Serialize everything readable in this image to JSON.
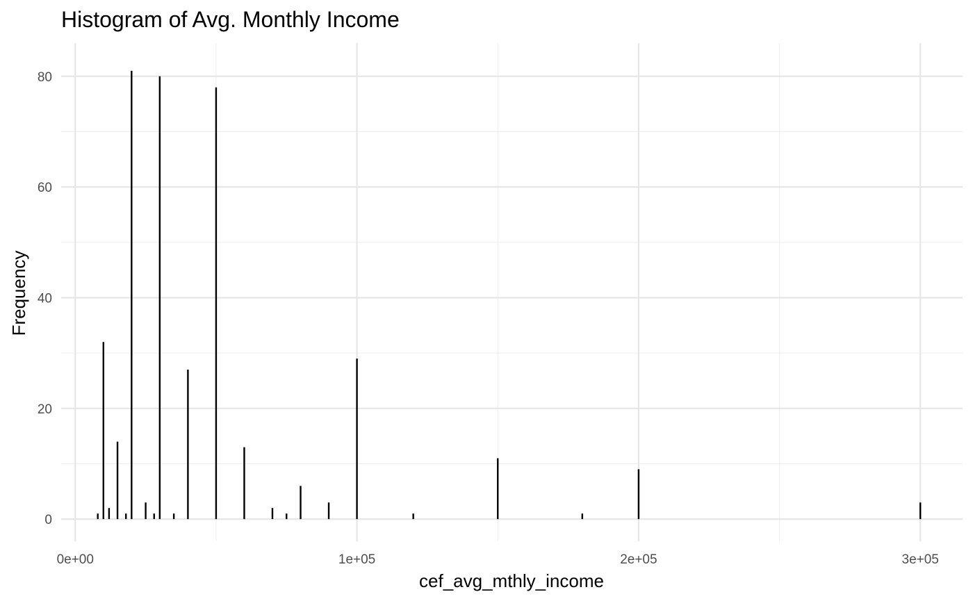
{
  "chart_data": {
    "type": "bar",
    "title": "Histogram of Avg. Monthly Income",
    "xlabel": "cef_avg_mthly_income",
    "ylabel": "Frequency",
    "xlim": [
      -5000,
      315000
    ],
    "ylim": [
      -4,
      86
    ],
    "x_ticks": [
      {
        "value": 0,
        "label": "0e+00"
      },
      {
        "value": 100000,
        "label": "1e+05"
      },
      {
        "value": 200000,
        "label": "2e+05"
      },
      {
        "value": 300000,
        "label": "3e+05"
      }
    ],
    "y_ticks": [
      {
        "value": 0,
        "label": "0"
      },
      {
        "value": 20,
        "label": "20"
      },
      {
        "value": 40,
        "label": "40"
      },
      {
        "value": 60,
        "label": "60"
      },
      {
        "value": 80,
        "label": "80"
      }
    ],
    "grid": true,
    "legend": "none",
    "bars": [
      {
        "x": 8000,
        "count": 1
      },
      {
        "x": 10000,
        "count": 32
      },
      {
        "x": 12000,
        "count": 2
      },
      {
        "x": 15000,
        "count": 14
      },
      {
        "x": 18000,
        "count": 1
      },
      {
        "x": 20000,
        "count": 81
      },
      {
        "x": 25000,
        "count": 3
      },
      {
        "x": 28000,
        "count": 1
      },
      {
        "x": 30000,
        "count": 80
      },
      {
        "x": 35000,
        "count": 1
      },
      {
        "x": 40000,
        "count": 27
      },
      {
        "x": 50000,
        "count": 78
      },
      {
        "x": 60000,
        "count": 13
      },
      {
        "x": 70000,
        "count": 2
      },
      {
        "x": 75000,
        "count": 1
      },
      {
        "x": 80000,
        "count": 6
      },
      {
        "x": 90000,
        "count": 3
      },
      {
        "x": 100000,
        "count": 29
      },
      {
        "x": 120000,
        "count": 1
      },
      {
        "x": 150000,
        "count": 11
      },
      {
        "x": 180000,
        "count": 1
      },
      {
        "x": 200000,
        "count": 9
      },
      {
        "x": 300000,
        "count": 3
      }
    ],
    "colors": {
      "bar": "#000000",
      "grid": "#e6e6e6",
      "tick_text": "#4d4d4d"
    }
  }
}
